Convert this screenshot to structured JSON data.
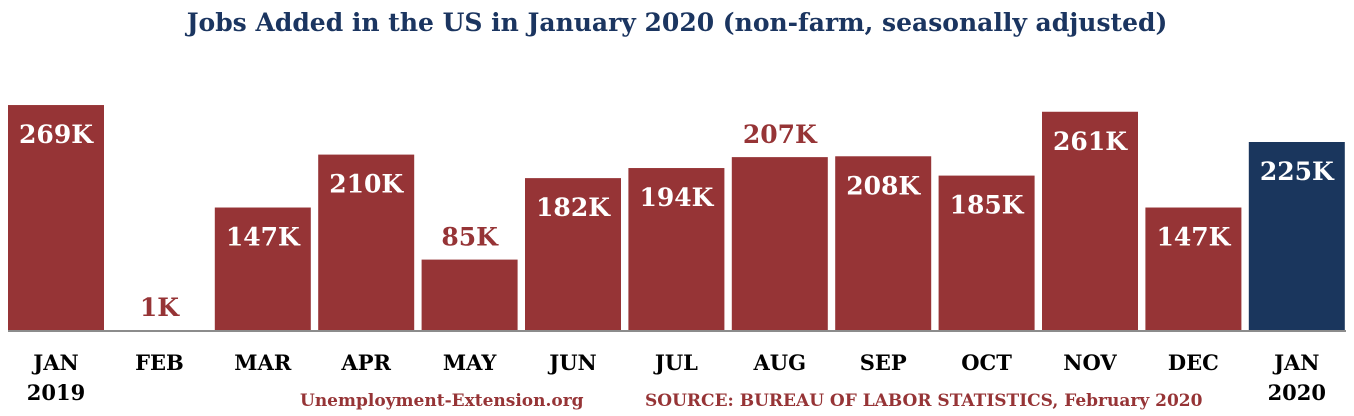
{
  "title": "Jobs Added in the US in January 2020 (non-farm, seasonally adjusted)",
  "footer_site": "Unemployment-Extension.org",
  "footer_source": "SOURCE: BUREAU OF LABOR STATISTICS, February 2020",
  "colors": {
    "title": "#1b3560",
    "bar": "#963436",
    "highlight": "#1a365d",
    "footer": "#963436",
    "axis_label": "#000000",
    "baseline": "#8c8c8c",
    "label_inside": "#ffffff"
  },
  "chart_data": {
    "type": "bar",
    "title": "Jobs Added in the US in January 2020 (non-farm, seasonally adjusted)",
    "categories": [
      [
        "JAN",
        "2019"
      ],
      [
        "FEB"
      ],
      [
        "MAR"
      ],
      [
        "APR"
      ],
      [
        "MAY"
      ],
      [
        "JUN"
      ],
      [
        "JUL"
      ],
      [
        "AUG"
      ],
      [
        "SEP"
      ],
      [
        "OCT"
      ],
      [
        "NOV"
      ],
      [
        "DEC"
      ],
      [
        "JAN",
        "2020"
      ]
    ],
    "values": [
      269,
      1,
      147,
      210,
      85,
      182,
      194,
      207,
      208,
      185,
      261,
      147,
      225
    ],
    "labels": [
      "269K",
      "1K",
      "147K",
      "210K",
      "85K",
      "182K",
      "194K",
      "207K",
      "208K",
      "185K",
      "261K",
      "147K",
      "225K"
    ],
    "label_position": [
      "inside",
      "above",
      "inside",
      "inside",
      "above",
      "inside",
      "inside",
      "above",
      "inside",
      "inside",
      "inside",
      "inside",
      "inside"
    ],
    "highlight_index": 12,
    "unit": "thousands of jobs",
    "grid": false,
    "legend": "none",
    "yaxis_visible": false
  }
}
